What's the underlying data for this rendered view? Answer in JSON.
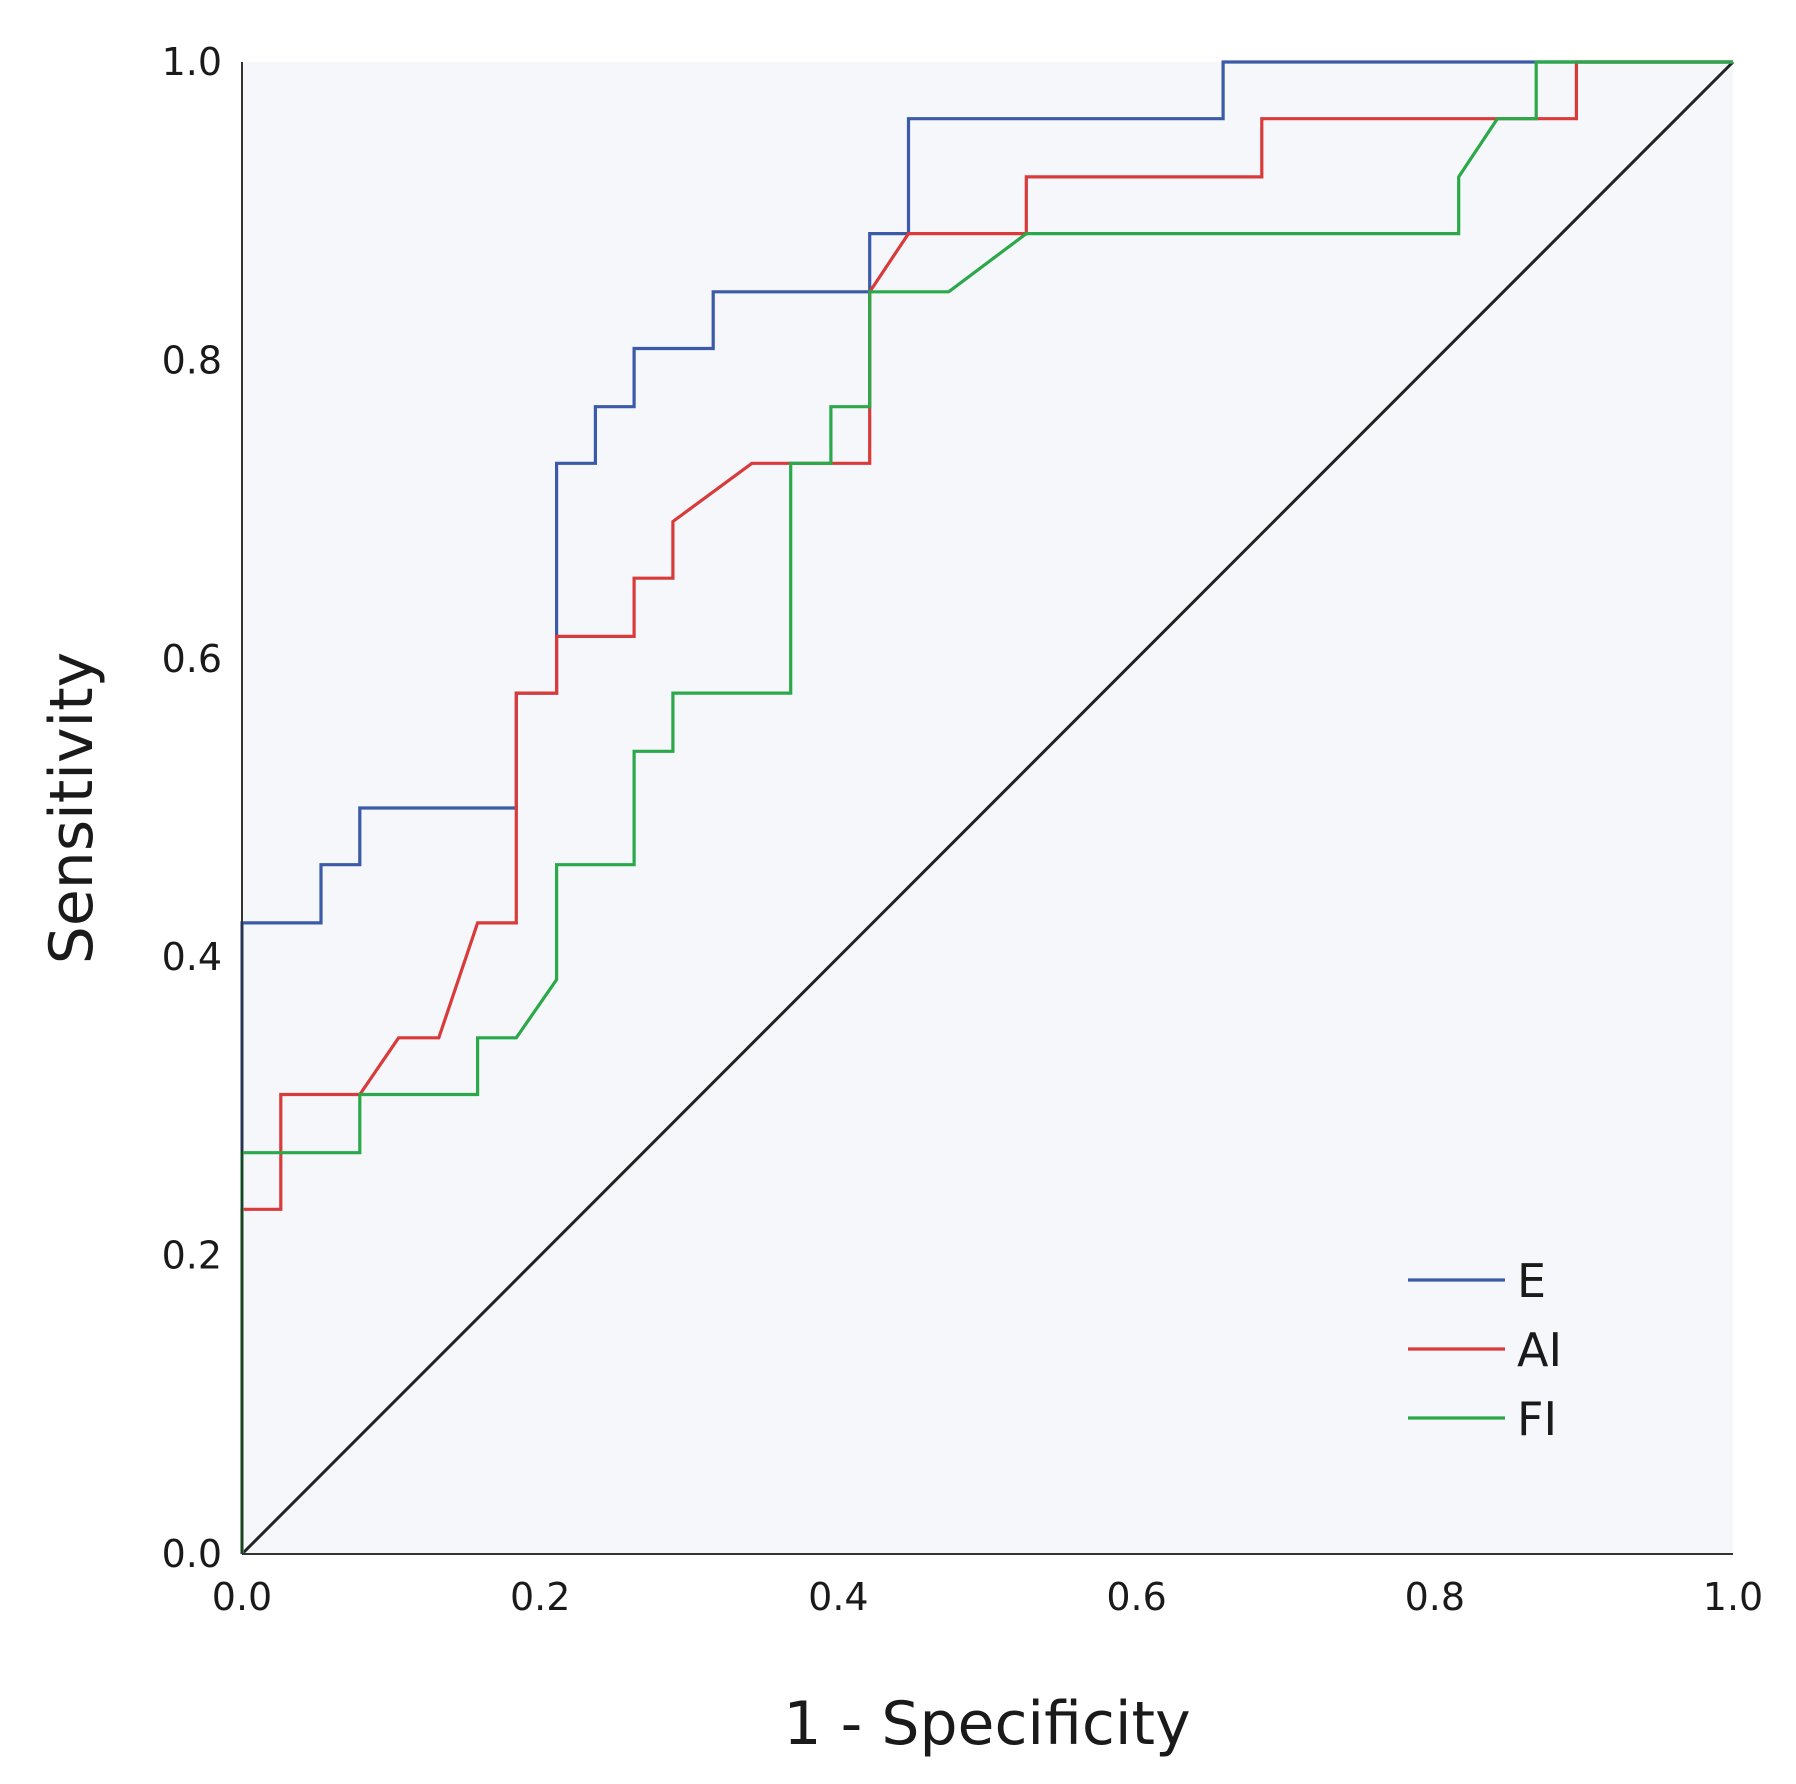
{
  "chart_data": {
    "type": "line",
    "xlabel": "1 - Specificity",
    "ylabel": "Sensitivity",
    "xlim": [
      0,
      1
    ],
    "ylim": [
      0,
      1
    ],
    "xticks": [
      "0.0",
      "0.2",
      "0.4",
      "0.6",
      "0.8",
      "1.0"
    ],
    "yticks": [
      "0.0",
      "0.2",
      "0.4",
      "0.6",
      "0.8",
      "1.0"
    ],
    "grid": false,
    "legend_position": "bottom-right",
    "plot_background": "#f5f7fa",
    "series": [
      {
        "name": "E",
        "color": "#3b5ba8",
        "points": [
          [
            0,
            0
          ],
          [
            0,
            0.423
          ],
          [
            0.053,
            0.423
          ],
          [
            0.053,
            0.462
          ],
          [
            0.079,
            0.462
          ],
          [
            0.079,
            0.5
          ],
          [
            0.184,
            0.5
          ],
          [
            0.184,
            0.577
          ],
          [
            0.211,
            0.577
          ],
          [
            0.211,
            0.731
          ],
          [
            0.237,
            0.731
          ],
          [
            0.237,
            0.769
          ],
          [
            0.263,
            0.769
          ],
          [
            0.263,
            0.808
          ],
          [
            0.316,
            0.808
          ],
          [
            0.316,
            0.846
          ],
          [
            0.421,
            0.846
          ],
          [
            0.421,
            0.885
          ],
          [
            0.447,
            0.885
          ],
          [
            0.447,
            0.962
          ],
          [
            0.658,
            0.962
          ],
          [
            0.658,
            1.0
          ],
          [
            1.0,
            1.0
          ]
        ]
      },
      {
        "name": "AI",
        "color": "#d93a3a",
        "points": [
          [
            0,
            0
          ],
          [
            0,
            0.231
          ],
          [
            0.026,
            0.231
          ],
          [
            0.026,
            0.308
          ],
          [
            0.079,
            0.308
          ],
          [
            0.105,
            0.346
          ],
          [
            0.132,
            0.346
          ],
          [
            0.158,
            0.423
          ],
          [
            0.184,
            0.423
          ],
          [
            0.184,
            0.577
          ],
          [
            0.211,
            0.577
          ],
          [
            0.211,
            0.615
          ],
          [
            0.263,
            0.615
          ],
          [
            0.263,
            0.654
          ],
          [
            0.289,
            0.654
          ],
          [
            0.289,
            0.692
          ],
          [
            0.342,
            0.731
          ],
          [
            0.421,
            0.731
          ],
          [
            0.421,
            0.846
          ],
          [
            0.447,
            0.885
          ],
          [
            0.526,
            0.885
          ],
          [
            0.526,
            0.923
          ],
          [
            0.684,
            0.923
          ],
          [
            0.684,
            0.962
          ],
          [
            0.895,
            0.962
          ],
          [
            0.895,
            1.0
          ],
          [
            1.0,
            1.0
          ]
        ]
      },
      {
        "name": "FI",
        "color": "#2aa84a",
        "points": [
          [
            0,
            0
          ],
          [
            0,
            0.269
          ],
          [
            0.079,
            0.269
          ],
          [
            0.079,
            0.308
          ],
          [
            0.158,
            0.308
          ],
          [
            0.158,
            0.346
          ],
          [
            0.184,
            0.346
          ],
          [
            0.211,
            0.385
          ],
          [
            0.211,
            0.462
          ],
          [
            0.263,
            0.462
          ],
          [
            0.263,
            0.538
          ],
          [
            0.289,
            0.538
          ],
          [
            0.289,
            0.577
          ],
          [
            0.368,
            0.577
          ],
          [
            0.368,
            0.731
          ],
          [
            0.395,
            0.731
          ],
          [
            0.395,
            0.769
          ],
          [
            0.421,
            0.769
          ],
          [
            0.421,
            0.846
          ],
          [
            0.474,
            0.846
          ],
          [
            0.526,
            0.885
          ],
          [
            0.816,
            0.885
          ],
          [
            0.816,
            0.923
          ],
          [
            0.842,
            0.962
          ],
          [
            0.868,
            0.962
          ],
          [
            0.868,
            1.0
          ],
          [
            1.0,
            1.0
          ]
        ]
      }
    ],
    "reference_line": {
      "color": "#222222",
      "points": [
        [
          0,
          0
        ],
        [
          1,
          1
        ]
      ]
    }
  }
}
